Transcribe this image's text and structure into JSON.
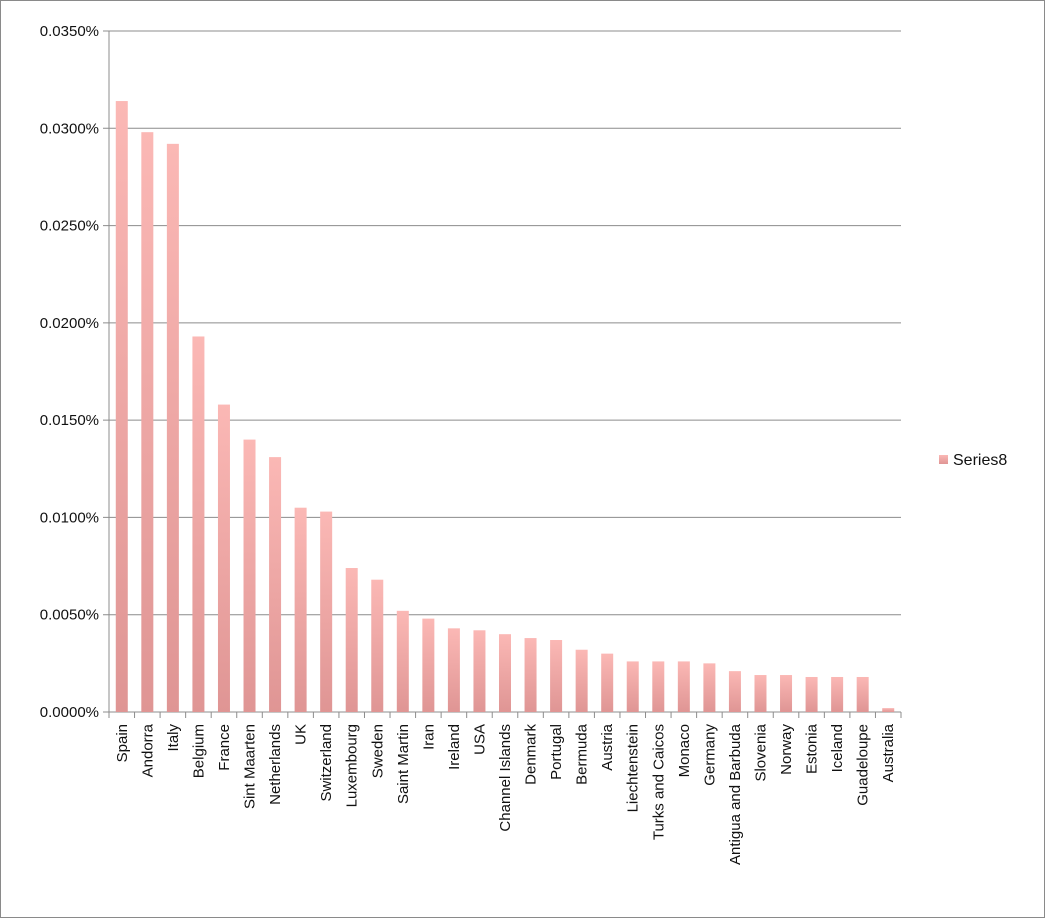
{
  "chart_data": {
    "type": "bar",
    "categories": [
      "Spain",
      "Andorra",
      "Italy",
      "Belgium",
      "France",
      "Sint Maarten",
      "Netherlands",
      "UK",
      "Switzerland",
      "Luxembourg",
      "Sweden",
      "Saint Martin",
      "Iran",
      "Ireland",
      "USA",
      "Channel Islands",
      "Denmark",
      "Portugal",
      "Bermuda",
      "Austria",
      "Liechtenstein",
      "Turks and Caicos",
      "Monaco",
      "Germany",
      "Antigua and Barbuda",
      "Slovenia",
      "Norway",
      "Estonia",
      "Iceland",
      "Guadeloupe",
      "Australia"
    ],
    "series": [
      {
        "name": "Series8",
        "values": [
          0.0314,
          0.0298,
          0.0292,
          0.0193,
          0.0158,
          0.014,
          0.0131,
          0.0105,
          0.0103,
          0.0074,
          0.0068,
          0.0052,
          0.0048,
          0.0043,
          0.0042,
          0.004,
          0.0038,
          0.0037,
          0.0032,
          0.003,
          0.0026,
          0.0026,
          0.0026,
          0.0025,
          0.0021,
          0.0019,
          0.0019,
          0.0018,
          0.0018,
          0.0018,
          0.0002
        ]
      }
    ],
    "yticks": [
      "0.0000%",
      "0.0050%",
      "0.0100%",
      "0.0150%",
      "0.0200%",
      "0.0250%",
      "0.0300%",
      "0.0350%"
    ],
    "ylim": [
      0,
      0.035
    ],
    "y_unit": "percent",
    "grid": true,
    "legend_position": "right",
    "colors": {
      "bar_top": "#fbb8b5",
      "bar_bottom": "#df9594",
      "grid": "#8c8c8c",
      "axis": "#8c8c8c"
    }
  }
}
